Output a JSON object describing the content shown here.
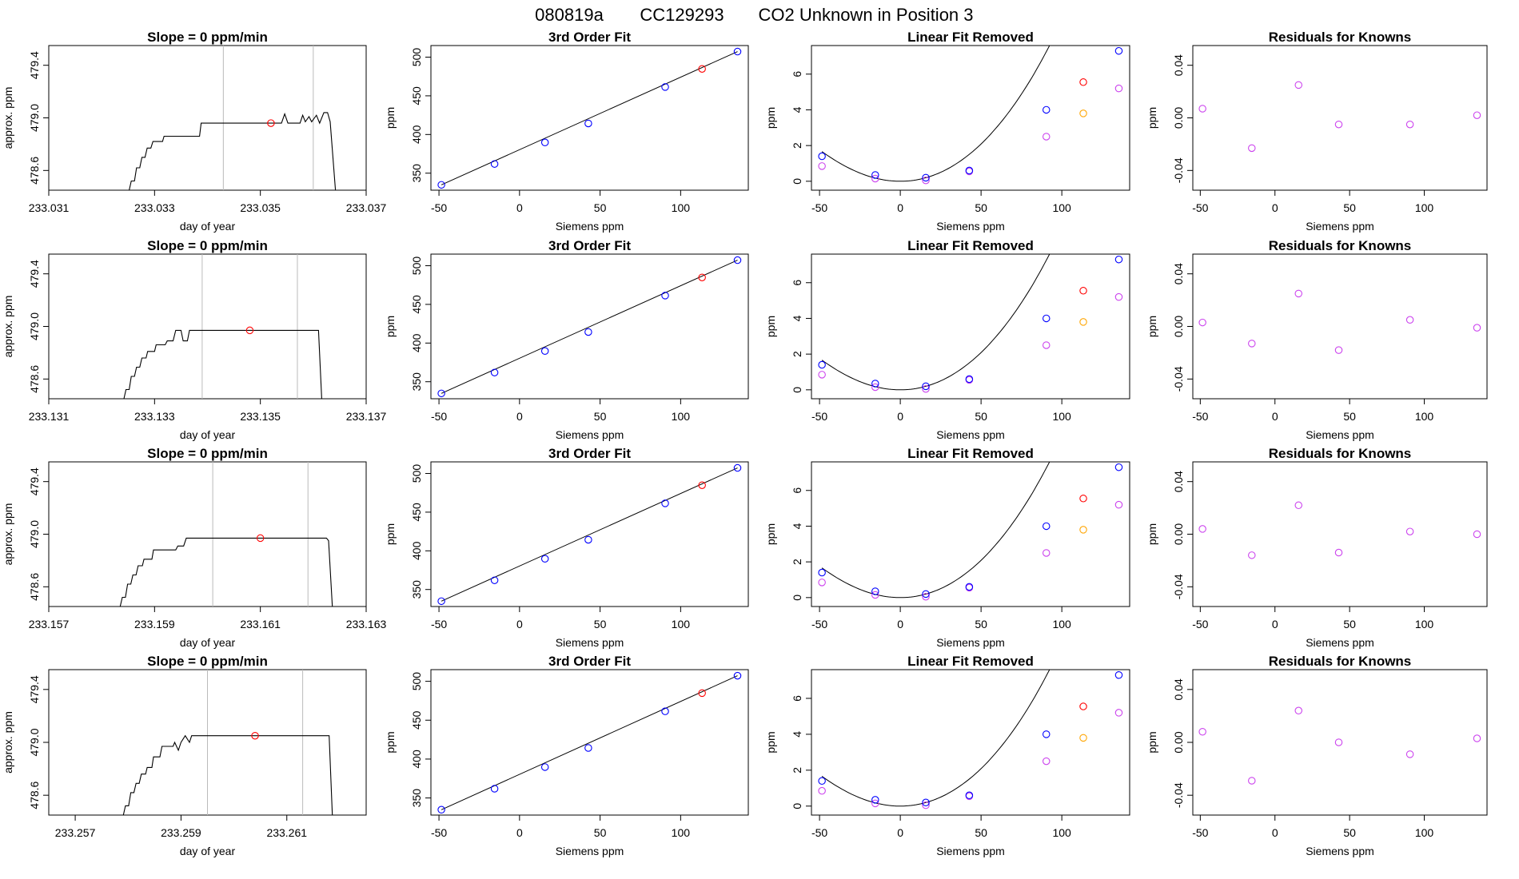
{
  "figure": {
    "title_parts": [
      "080819a",
      "CC129293",
      "CO2 Unknown in Position  3"
    ]
  },
  "colors": {
    "known": "#0000ff",
    "unknown": "#ff0000",
    "raw": "#cc44ee",
    "raw_unknown": "#ffa500",
    "trace": "#000000",
    "vline": "#bbbbbb"
  },
  "chart_data": [
    {
      "row": 1,
      "panel": "trace",
      "type": "line",
      "title": "Slope =  0  ppm/min",
      "xlabel": "day of year",
      "ylabel": "approx. ppm",
      "xlim": [
        233.031,
        233.037
      ],
      "ylim": [
        478.45,
        479.55
      ],
      "xticks": [
        "233.031",
        "233.033",
        "233.035",
        "233.037"
      ],
      "yticks": [
        "478.6",
        "479.0",
        "479.4"
      ],
      "vlines": [
        233.0343,
        233.036
      ],
      "marker": {
        "x": 233.0352,
        "y": 478.96
      },
      "trace": [
        [
          233.03252,
          478.45
        ],
        [
          233.03256,
          478.52
        ],
        [
          233.03262,
          478.52
        ],
        [
          233.03266,
          478.62
        ],
        [
          233.03272,
          478.62
        ],
        [
          233.03276,
          478.7
        ],
        [
          233.03282,
          478.7
        ],
        [
          233.03286,
          478.77
        ],
        [
          233.03293,
          478.77
        ],
        [
          233.03297,
          478.82
        ],
        [
          233.03315,
          478.82
        ],
        [
          233.03318,
          478.86
        ],
        [
          233.03385,
          478.86
        ],
        [
          233.03388,
          478.96
        ],
        [
          233.0354,
          478.96
        ],
        [
          233.03546,
          479.03
        ],
        [
          233.03552,
          478.96
        ],
        [
          233.03575,
          478.96
        ],
        [
          233.0358,
          479.02
        ],
        [
          233.03585,
          478.97
        ],
        [
          233.03592,
          479.01
        ],
        [
          233.03597,
          478.97
        ],
        [
          233.03606,
          479.02
        ],
        [
          233.03612,
          478.96
        ],
        [
          233.0362,
          479.04
        ],
        [
          233.03627,
          479.04
        ],
        [
          233.03632,
          478.97
        ],
        [
          233.03642,
          478.45
        ]
      ]
    },
    {
      "row": 1,
      "panel": "fit",
      "type": "scatter",
      "title": "3rd Order Fit",
      "xlabel": "Siemens ppm",
      "ylabel": "ppm",
      "xlim": [
        -55,
        142
      ],
      "ylim": [
        328,
        515
      ],
      "xticks": [
        "-50",
        "0",
        "50",
        "100"
      ],
      "yticks": [
        "350",
        "400",
        "450",
        "500"
      ],
      "knowns": [
        [
          -48.5,
          334.9
        ],
        [
          -15.5,
          361.9
        ],
        [
          15.8,
          389.7
        ],
        [
          42.7,
          414.3
        ],
        [
          90.4,
          461.4
        ],
        [
          135.3,
          507.2
        ]
      ],
      "unknown": [
        113.3,
        484.8
      ]
    },
    {
      "row": 1,
      "panel": "linear",
      "type": "scatter",
      "title": "Linear Fit Removed",
      "xlabel": "Siemens ppm",
      "ylabel": "ppm",
      "xlim": [
        -55,
        142
      ],
      "ylim": [
        -0.5,
        7.6
      ],
      "xticks": [
        "-50",
        "0",
        "50",
        "100"
      ],
      "yticks": [
        "0",
        "2",
        "4",
        "6"
      ],
      "knowns": [
        [
          -48.5,
          1.4
        ],
        [
          -15.5,
          0.35
        ],
        [
          15.8,
          0.2
        ],
        [
          42.7,
          0.6
        ],
        [
          90.4,
          4.0
        ],
        [
          135.3,
          7.3
        ]
      ],
      "unknown": [
        113.3,
        5.55
      ],
      "raw_knowns": [
        [
          -48.5,
          0.85
        ],
        [
          -15.5,
          0.15
        ],
        [
          15.8,
          0.05
        ],
        [
          42.7,
          0.55
        ],
        [
          90.4,
          2.5
        ],
        [
          135.3,
          5.2
        ]
      ],
      "raw_unknown": [
        113.3,
        3.8
      ],
      "curve": [
        0.00077,
        0.0,
        0.0,
        1.3e-06
      ]
    },
    {
      "row": 1,
      "panel": "resid",
      "type": "scatter",
      "title": "Residuals for Knowns",
      "xlabel": "Siemens ppm",
      "ylabel": "ppm",
      "xlim": [
        -55,
        142
      ],
      "ylim": [
        -0.055,
        0.055
      ],
      "xticks": [
        "-50",
        "0",
        "50",
        "100"
      ],
      "yticks": [
        "-0.04",
        "0.00",
        "0.04"
      ],
      "points": [
        [
          -48.5,
          0.007
        ],
        [
          -15.5,
          -0.023
        ],
        [
          15.8,
          0.025
        ],
        [
          42.7,
          -0.005
        ],
        [
          90.4,
          -0.005
        ],
        [
          135.3,
          0.002
        ]
      ]
    },
    {
      "row": 2,
      "panel": "trace",
      "type": "line",
      "title": "Slope =  0  ppm/min",
      "xlabel": "day of year",
      "ylabel": "approx. ppm",
      "xlim": [
        233.131,
        233.137
      ],
      "ylim": [
        478.45,
        479.55
      ],
      "xticks": [
        "233.131",
        "233.133",
        "233.135",
        "233.137"
      ],
      "yticks": [
        "478.6",
        "479.0",
        "479.4"
      ],
      "vlines": [
        233.1339,
        233.1357
      ],
      "marker": {
        "x": 233.1348,
        "y": 478.97
      },
      "trace": [
        [
          233.13242,
          478.45
        ],
        [
          233.13246,
          478.52
        ],
        [
          233.13252,
          478.52
        ],
        [
          233.13256,
          478.62
        ],
        [
          233.13262,
          478.62
        ],
        [
          233.13266,
          478.69
        ],
        [
          233.13272,
          478.69
        ],
        [
          233.13276,
          478.76
        ],
        [
          233.13284,
          478.76
        ],
        [
          233.13287,
          478.81
        ],
        [
          233.133,
          478.81
        ],
        [
          233.13303,
          478.86
        ],
        [
          233.1332,
          478.86
        ],
        [
          233.13324,
          478.89
        ],
        [
          233.13335,
          478.89
        ],
        [
          233.1334,
          478.97
        ],
        [
          233.1335,
          478.97
        ],
        [
          233.13354,
          478.89
        ],
        [
          233.13362,
          478.89
        ],
        [
          233.13366,
          478.97
        ],
        [
          233.1361,
          478.97
        ],
        [
          233.13616,
          478.45
        ]
      ]
    },
    {
      "row": 2,
      "panel": "fit",
      "type": "scatter",
      "title": "3rd Order Fit",
      "xlabel": "Siemens ppm",
      "ylabel": "ppm",
      "xlim": [
        -55,
        142
      ],
      "ylim": [
        328,
        515
      ],
      "xticks": [
        "-50",
        "0",
        "50",
        "100"
      ],
      "yticks": [
        "350",
        "400",
        "450",
        "500"
      ],
      "knowns": [
        [
          -48.5,
          334.9
        ],
        [
          -15.5,
          361.9
        ],
        [
          15.8,
          389.7
        ],
        [
          42.7,
          414.3
        ],
        [
          90.4,
          461.4
        ],
        [
          135.3,
          507.2
        ]
      ],
      "unknown": [
        113.3,
        484.8
      ]
    },
    {
      "row": 2,
      "panel": "linear",
      "type": "scatter",
      "title": "Linear Fit Removed",
      "xlabel": "Siemens ppm",
      "ylabel": "ppm",
      "xlim": [
        -55,
        142
      ],
      "ylim": [
        -0.5,
        7.6
      ],
      "xticks": [
        "-50",
        "0",
        "50",
        "100"
      ],
      "yticks": [
        "0",
        "2",
        "4",
        "6"
      ],
      "knowns": [
        [
          -48.5,
          1.4
        ],
        [
          -15.5,
          0.35
        ],
        [
          15.8,
          0.2
        ],
        [
          42.7,
          0.6
        ],
        [
          90.4,
          4.0
        ],
        [
          135.3,
          7.3
        ]
      ],
      "unknown": [
        113.3,
        5.55
      ],
      "raw_knowns": [
        [
          -48.5,
          0.85
        ],
        [
          -15.5,
          0.15
        ],
        [
          15.8,
          0.05
        ],
        [
          42.7,
          0.55
        ],
        [
          90.4,
          2.5
        ],
        [
          135.3,
          5.2
        ]
      ],
      "raw_unknown": [
        113.3,
        3.8
      ],
      "curve": [
        0.00077,
        0.0,
        0.0,
        1.3e-06
      ]
    },
    {
      "row": 2,
      "panel": "resid",
      "type": "scatter",
      "title": "Residuals for Knowns",
      "xlabel": "Siemens ppm",
      "ylabel": "ppm",
      "xlim": [
        -55,
        142
      ],
      "ylim": [
        -0.055,
        0.055
      ],
      "xticks": [
        "-50",
        "0",
        "50",
        "100"
      ],
      "yticks": [
        "-0.04",
        "0.00",
        "0.04"
      ],
      "points": [
        [
          -48.5,
          0.003
        ],
        [
          -15.5,
          -0.013
        ],
        [
          15.8,
          0.025
        ],
        [
          42.7,
          -0.018
        ],
        [
          90.4,
          0.005
        ],
        [
          135.3,
          -0.001
        ]
      ]
    },
    {
      "row": 3,
      "panel": "trace",
      "type": "line",
      "title": "Slope =  0  ppm/min",
      "xlabel": "day of year",
      "ylabel": "approx. ppm",
      "xlim": [
        233.157,
        233.163
      ],
      "ylim": [
        478.45,
        479.55
      ],
      "xticks": [
        "233.157",
        "233.159",
        "233.161",
        "233.163"
      ],
      "yticks": [
        "478.6",
        "479.0",
        "479.4"
      ],
      "vlines": [
        233.1601,
        233.1619
      ],
      "marker": {
        "x": 233.161,
        "y": 478.97
      },
      "trace": [
        [
          233.15835,
          478.45
        ],
        [
          233.15839,
          478.52
        ],
        [
          233.15845,
          478.52
        ],
        [
          233.15849,
          478.62
        ],
        [
          233.15855,
          478.62
        ],
        [
          233.15859,
          478.69
        ],
        [
          233.15865,
          478.69
        ],
        [
          233.15869,
          478.76
        ],
        [
          233.15877,
          478.76
        ],
        [
          233.1588,
          478.81
        ],
        [
          233.15895,
          478.81
        ],
        [
          233.15898,
          478.88
        ],
        [
          233.1594,
          478.88
        ],
        [
          233.15944,
          478.91
        ],
        [
          233.15955,
          478.91
        ],
        [
          233.1596,
          478.97
        ],
        [
          233.16225,
          478.97
        ],
        [
          233.16229,
          478.95
        ],
        [
          233.16236,
          478.45
        ]
      ]
    },
    {
      "row": 3,
      "panel": "fit",
      "type": "scatter",
      "title": "3rd Order Fit",
      "xlabel": "Siemens ppm",
      "ylabel": "ppm",
      "xlim": [
        -55,
        142
      ],
      "ylim": [
        328,
        515
      ],
      "xticks": [
        "-50",
        "0",
        "50",
        "100"
      ],
      "yticks": [
        "350",
        "400",
        "450",
        "500"
      ],
      "knowns": [
        [
          -48.5,
          334.9
        ],
        [
          -15.5,
          361.9
        ],
        [
          15.8,
          389.7
        ],
        [
          42.7,
          414.3
        ],
        [
          90.4,
          461.4
        ],
        [
          135.3,
          507.2
        ]
      ],
      "unknown": [
        113.3,
        484.8
      ]
    },
    {
      "row": 3,
      "panel": "linear",
      "type": "scatter",
      "title": "Linear Fit Removed",
      "xlabel": "Siemens ppm",
      "ylabel": "ppm",
      "xlim": [
        -55,
        142
      ],
      "ylim": [
        -0.5,
        7.6
      ],
      "xticks": [
        "-50",
        "0",
        "50",
        "100"
      ],
      "yticks": [
        "0",
        "2",
        "4",
        "6"
      ],
      "knowns": [
        [
          -48.5,
          1.4
        ],
        [
          -15.5,
          0.35
        ],
        [
          15.8,
          0.2
        ],
        [
          42.7,
          0.6
        ],
        [
          90.4,
          4.0
        ],
        [
          135.3,
          7.3
        ]
      ],
      "unknown": [
        113.3,
        5.55
      ],
      "raw_knowns": [
        [
          -48.5,
          0.85
        ],
        [
          -15.5,
          0.15
        ],
        [
          15.8,
          0.05
        ],
        [
          42.7,
          0.55
        ],
        [
          90.4,
          2.5
        ],
        [
          135.3,
          5.2
        ]
      ],
      "raw_unknown": [
        113.3,
        3.8
      ],
      "curve": [
        0.00077,
        0.0,
        0.0,
        1.3e-06
      ]
    },
    {
      "row": 3,
      "panel": "resid",
      "type": "scatter",
      "title": "Residuals for Knowns",
      "xlabel": "Siemens ppm",
      "ylabel": "ppm",
      "xlim": [
        -55,
        142
      ],
      "ylim": [
        -0.055,
        0.055
      ],
      "xticks": [
        "-50",
        "0",
        "50",
        "100"
      ],
      "yticks": [
        "-0.04",
        "0.00",
        "0.04"
      ],
      "points": [
        [
          -48.5,
          0.004
        ],
        [
          -15.5,
          -0.016
        ],
        [
          15.8,
          0.022
        ],
        [
          42.7,
          -0.014
        ],
        [
          90.4,
          0.002
        ],
        [
          135.3,
          0.0
        ]
      ]
    },
    {
      "row": 4,
      "panel": "trace",
      "type": "line",
      "title": "Slope =  0  ppm/min",
      "xlabel": "day of year",
      "ylabel": "approx. ppm",
      "xlim": [
        233.2565,
        233.2625
      ],
      "ylim": [
        478.45,
        479.55
      ],
      "xticks": [
        "233.257",
        "233.259",
        "233.261"
      ],
      "xtick_values": [
        233.257,
        233.259,
        233.261
      ],
      "yticks": [
        "478.6",
        "479.0",
        "479.4"
      ],
      "vlines": [
        233.2595,
        233.2613
      ],
      "marker": {
        "x": 233.2604,
        "y": 479.05
      },
      "trace": [
        [
          233.25791,
          478.45
        ],
        [
          233.25795,
          478.52
        ],
        [
          233.25801,
          478.52
        ],
        [
          233.25805,
          478.62
        ],
        [
          233.25811,
          478.62
        ],
        [
          233.25815,
          478.69
        ],
        [
          233.25821,
          478.69
        ],
        [
          233.25825,
          478.76
        ],
        [
          233.25833,
          478.76
        ],
        [
          233.25836,
          478.81
        ],
        [
          233.25845,
          478.81
        ],
        [
          233.25848,
          478.89
        ],
        [
          233.2586,
          478.89
        ],
        [
          233.25864,
          478.97
        ],
        [
          233.25885,
          478.97
        ],
        [
          233.25888,
          479.0
        ],
        [
          233.25895,
          478.94
        ],
        [
          233.259,
          479.0
        ],
        [
          233.25908,
          479.05
        ],
        [
          233.25916,
          479.0
        ],
        [
          233.2592,
          479.05
        ],
        [
          233.2618,
          479.05
        ],
        [
          233.26186,
          478.45
        ]
      ]
    },
    {
      "row": 4,
      "panel": "fit",
      "type": "scatter",
      "title": "3rd Order Fit",
      "xlabel": "Siemens ppm",
      "ylabel": "ppm",
      "xlim": [
        -55,
        142
      ],
      "ylim": [
        328,
        515
      ],
      "xticks": [
        "-50",
        "0",
        "50",
        "100"
      ],
      "yticks": [
        "350",
        "400",
        "450",
        "500"
      ],
      "knowns": [
        [
          -48.5,
          334.9
        ],
        [
          -15.5,
          361.9
        ],
        [
          15.8,
          389.7
        ],
        [
          42.7,
          414.3
        ],
        [
          90.4,
          461.4
        ],
        [
          135.3,
          507.2
        ]
      ],
      "unknown": [
        113.3,
        484.8
      ]
    },
    {
      "row": 4,
      "panel": "linear",
      "type": "scatter",
      "title": "Linear Fit Removed",
      "xlabel": "Siemens ppm",
      "ylabel": "ppm",
      "xlim": [
        -55,
        142
      ],
      "ylim": [
        -0.5,
        7.6
      ],
      "xticks": [
        "-50",
        "0",
        "50",
        "100"
      ],
      "yticks": [
        "0",
        "2",
        "4",
        "6"
      ],
      "knowns": [
        [
          -48.5,
          1.4
        ],
        [
          -15.5,
          0.35
        ],
        [
          15.8,
          0.2
        ],
        [
          42.7,
          0.6
        ],
        [
          90.4,
          4.0
        ],
        [
          135.3,
          7.3
        ]
      ],
      "unknown": [
        113.3,
        5.55
      ],
      "raw_knowns": [
        [
          -48.5,
          0.85
        ],
        [
          -15.5,
          0.15
        ],
        [
          15.8,
          0.05
        ],
        [
          42.7,
          0.55
        ],
        [
          90.4,
          2.5
        ],
        [
          135.3,
          5.2
        ]
      ],
      "raw_unknown": [
        113.3,
        3.8
      ],
      "curve": [
        0.00077,
        0.0,
        0.0,
        1.3e-06
      ]
    },
    {
      "row": 4,
      "panel": "resid",
      "type": "scatter",
      "title": "Residuals for Knowns",
      "xlabel": "Siemens ppm",
      "ylabel": "ppm",
      "xlim": [
        -55,
        142
      ],
      "ylim": [
        -0.055,
        0.055
      ],
      "xticks": [
        "-50",
        "0",
        "50",
        "100"
      ],
      "yticks": [
        "-0.04",
        "0.00",
        "0.04"
      ],
      "points": [
        [
          -48.5,
          0.008
        ],
        [
          -15.5,
          -0.029
        ],
        [
          15.8,
          0.024
        ],
        [
          42.7,
          0.0
        ],
        [
          90.4,
          -0.009
        ],
        [
          135.3,
          0.003
        ]
      ]
    }
  ]
}
